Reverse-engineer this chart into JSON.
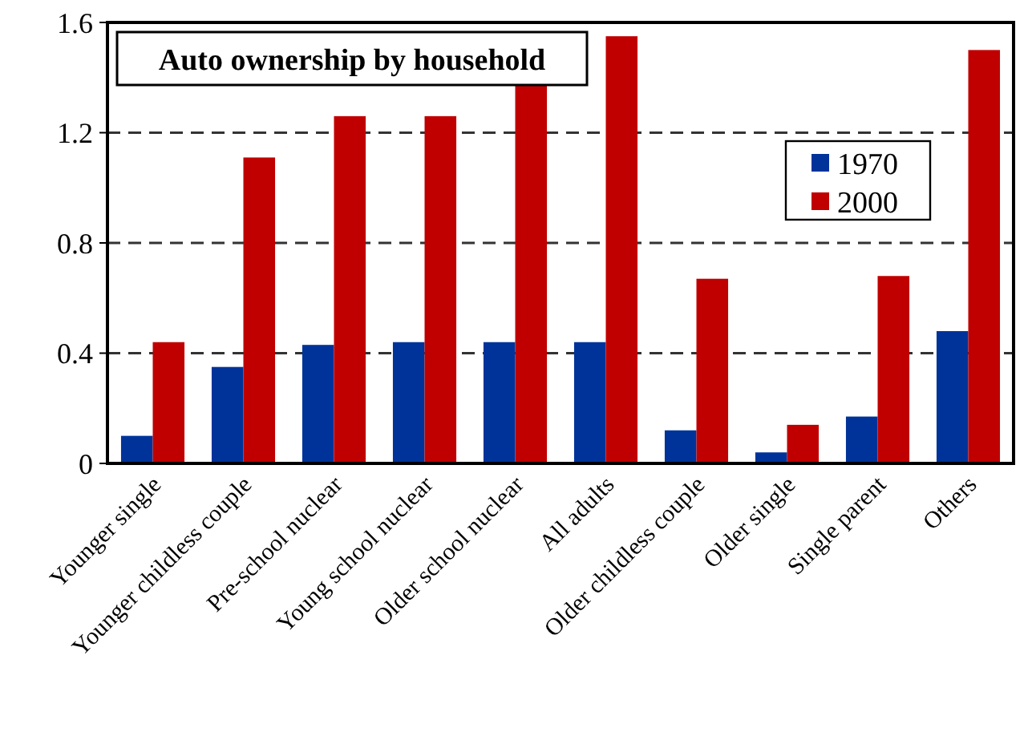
{
  "chart_data": {
    "type": "bar",
    "title": "Auto ownership by household",
    "categories": [
      "Younger single",
      "Younger childless couple",
      "Pre-school nuclear",
      "Young school nuclear",
      "Older school nuclear",
      "All adults",
      "Older childless couple",
      "Older single",
      "Single parent",
      "Others"
    ],
    "series": [
      {
        "name": "1970",
        "color": "#003399",
        "values": [
          0.1,
          0.35,
          0.43,
          0.44,
          0.44,
          0.44,
          0.12,
          0.04,
          0.17,
          0.48
        ]
      },
      {
        "name": "2000",
        "color": "#c00000",
        "values": [
          0.44,
          1.11,
          1.26,
          1.26,
          1.38,
          1.55,
          0.67,
          0.14,
          0.68,
          1.5
        ]
      }
    ],
    "ylim": [
      0,
      1.6
    ],
    "yticks": [
      0,
      0.4,
      0.8,
      1.2,
      1.6
    ],
    "grid": "y",
    "legend": "top right"
  }
}
